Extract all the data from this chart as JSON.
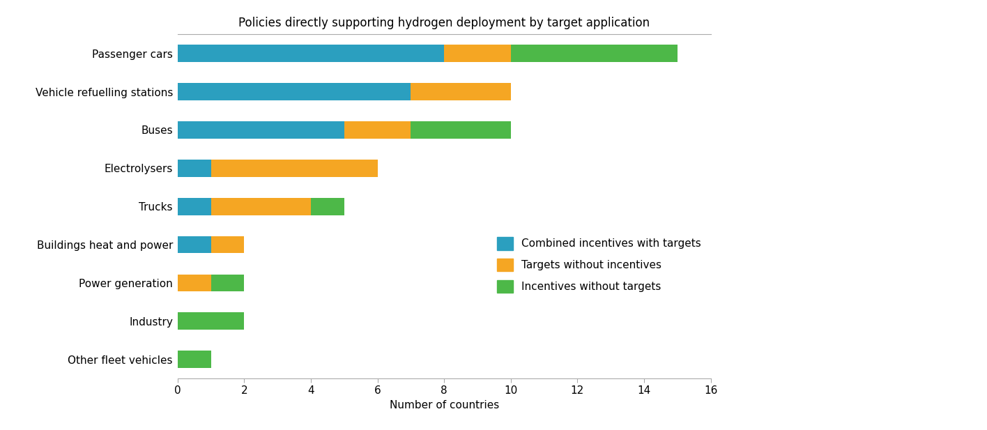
{
  "title": "Policies directly supporting hydrogen deployment by target application",
  "xlabel": "Number of countries",
  "categories": [
    "Passenger cars",
    "Vehicle refuelling stations",
    "Buses",
    "Electrolysers",
    "Trucks",
    "Buildings heat and power",
    "Power generation",
    "Industry",
    "Other fleet vehicles"
  ],
  "combined_incentives": [
    8,
    7,
    5,
    1,
    1,
    1,
    0,
    0,
    0
  ],
  "targets_without": [
    2,
    3,
    2,
    5,
    3,
    1,
    1,
    0,
    0
  ],
  "incentives_without": [
    5,
    0,
    3,
    0,
    1,
    0,
    1,
    2,
    1
  ],
  "color_combined": "#2b9fbf",
  "color_targets": "#f5a623",
  "color_incentives": "#4db848",
  "legend_labels": [
    "Combined incentives with targets",
    "Targets without incentives",
    "Incentives without targets"
  ],
  "xlim": [
    0,
    16
  ],
  "xticks": [
    0,
    2,
    4,
    6,
    8,
    10,
    12,
    14,
    16
  ],
  "bar_height": 0.45,
  "title_fontsize": 12,
  "label_fontsize": 11,
  "tick_fontsize": 11
}
